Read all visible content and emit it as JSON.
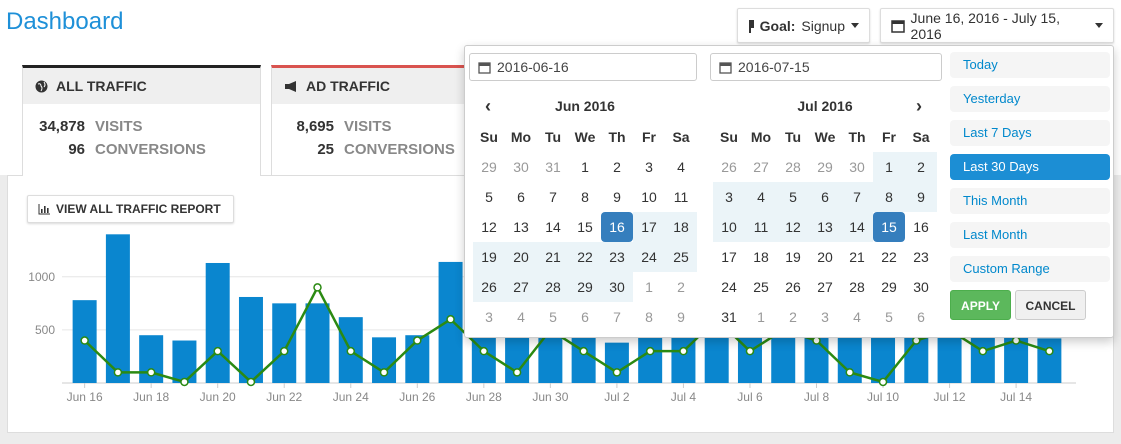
{
  "header": {
    "title": "Dashboard",
    "goal_label": "Goal:",
    "goal_value": "Signup",
    "date_range": "June 16, 2016 - July 15, 2016"
  },
  "tabs": [
    {
      "title": "ALL TRAFFIC",
      "visits": "34,878",
      "visits_label": "VISITS",
      "conversions": "96",
      "conversions_label": "CONVERSIONS"
    },
    {
      "title": "AD TRAFFIC",
      "visits": "8,695",
      "visits_label": "VISITS",
      "conversions": "25",
      "conversions_label": "CONVERSIONS"
    }
  ],
  "report_button": "VIEW ALL TRAFFIC REPORT",
  "chart_data": {
    "type": "bar",
    "categories": [
      "Jun 16",
      null,
      "Jun 18",
      null,
      "Jun 20",
      null,
      "Jun 22",
      null,
      "Jun 24",
      null,
      "Jun 26",
      null,
      "Jun 28",
      null,
      "Jun 30",
      null,
      "Jul 2",
      null,
      "Jul 4",
      null,
      "Jul 6",
      null,
      "Jul 8",
      null,
      "Jul 10",
      null,
      "Jul 12",
      null,
      "Jul 14",
      null
    ],
    "series": [
      {
        "type": "bar",
        "color": "#0a86cf",
        "values": [
          780,
          1400,
          450,
          400,
          1130,
          810,
          750,
          750,
          620,
          430,
          450,
          1140,
          700,
          650,
          550,
          600,
          380,
          700,
          600,
          650,
          750,
          700,
          620,
          700,
          680,
          560,
          720,
          580,
          650,
          420
        ]
      },
      {
        "type": "line",
        "color": "#2b8a12",
        "values": [
          400,
          100,
          100,
          10,
          300,
          10,
          300,
          900,
          300,
          100,
          400,
          600,
          300,
          100,
          500,
          300,
          100,
          300,
          300,
          600,
          300,
          500,
          400,
          100,
          10,
          400,
          500,
          300,
          400,
          300
        ]
      }
    ],
    "ylim": [
      0,
      1450
    ],
    "yticks": [
      500,
      1000
    ],
    "grid": true
  },
  "datepicker": {
    "start": "2016-06-16",
    "end": "2016-07-15",
    "weekdays": [
      "Su",
      "Mo",
      "Tu",
      "We",
      "Th",
      "Fr",
      "Sa"
    ],
    "calendars": [
      {
        "title": "Jun 2016",
        "weeks": [
          [
            29,
            30,
            31,
            1,
            2,
            3,
            4
          ],
          [
            5,
            6,
            7,
            8,
            9,
            10,
            11
          ],
          [
            12,
            13,
            14,
            15,
            16,
            17,
            18
          ],
          [
            19,
            20,
            21,
            22,
            23,
            24,
            25
          ],
          [
            26,
            27,
            28,
            29,
            30,
            1,
            2
          ],
          [
            3,
            4,
            5,
            6,
            7,
            8,
            9
          ]
        ]
      },
      {
        "title": "Jul 2016",
        "weeks": [
          [
            26,
            27,
            28,
            29,
            30,
            1,
            2
          ],
          [
            3,
            4,
            5,
            6,
            7,
            8,
            9
          ],
          [
            10,
            11,
            12,
            13,
            14,
            15,
            16
          ],
          [
            17,
            18,
            19,
            20,
            21,
            22,
            23
          ],
          [
            24,
            25,
            26,
            27,
            28,
            29,
            30
          ],
          [
            31,
            1,
            2,
            3,
            4,
            5,
            6
          ]
        ]
      }
    ],
    "ranges": [
      {
        "label": "Today"
      },
      {
        "label": "Yesterday"
      },
      {
        "label": "Last 7 Days"
      },
      {
        "label": "Last 30 Days",
        "active": true
      },
      {
        "label": "This Month"
      },
      {
        "label": "Last Month"
      },
      {
        "label": "Custom Range"
      }
    ],
    "apply": "APPLY",
    "cancel": "CANCEL"
  }
}
